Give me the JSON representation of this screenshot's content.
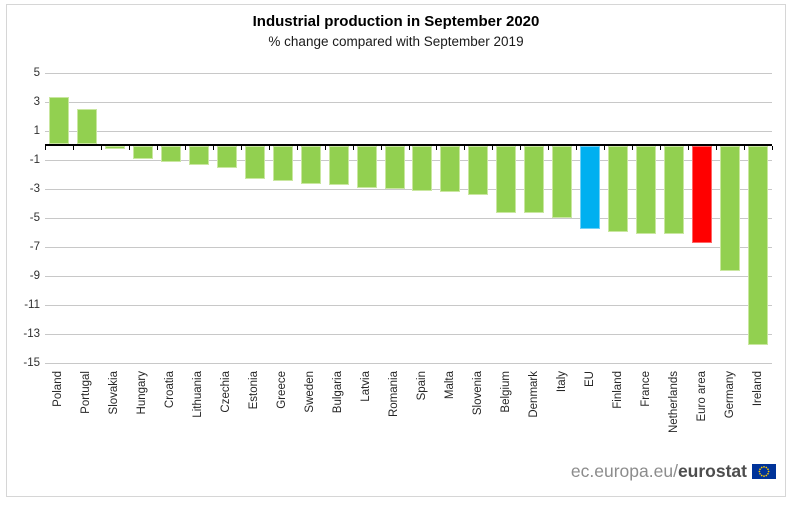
{
  "page": {
    "title": "Industrial production in September 2020",
    "subtitle": "% change compared with September 2019"
  },
  "footer": {
    "link_prefix": "ec.europa.eu/",
    "link_bold": "eurostat",
    "flag_icon": "eu-flag-icon",
    "flag_blue": "#003399",
    "flag_star_color": "#FFCC00"
  },
  "chart_data": {
    "type": "bar",
    "title": "Industrial production in September 2020",
    "subtitle": "% change compared with September 2019",
    "xlabel": "",
    "ylabel": "",
    "unit": "% change compared with September 2019",
    "ylim": [
      -15,
      5
    ],
    "yticks": [
      5,
      3,
      1,
      -1,
      -3,
      -5,
      -7,
      -9,
      -11,
      -13,
      -15
    ],
    "grid": true,
    "legend": false,
    "categories": [
      "Poland",
      "Portugal",
      "Slovakia",
      "Hungary",
      "Croatia",
      "Lithuania",
      "Czechia",
      "Estonia",
      "Greece",
      "Sweden",
      "Bulgaria",
      "Latvia",
      "Romania",
      "Spain",
      "Malta",
      "Slovenia",
      "Belgium",
      "Denmark",
      "Italy",
      "EU",
      "Finland",
      "France",
      "Netherlands",
      "Euro area",
      "Germany",
      "Ireland"
    ],
    "values": [
      3.3,
      2.5,
      -0.3,
      -1.0,
      -1.2,
      -1.4,
      -1.6,
      -2.4,
      -2.5,
      -2.7,
      -2.8,
      -3.0,
      -3.1,
      -3.2,
      -3.3,
      -3.5,
      -4.7,
      -4.7,
      -5.1,
      -5.8,
      -6.0,
      -6.2,
      -6.2,
      -6.8,
      -8.7,
      -13.8
    ],
    "bar_color_default": "#92D050",
    "bar_border_default": "#c9e7a0",
    "bar_color_overrides": {
      "EU": "#00B0F0",
      "Euro area": "#FF0000"
    },
    "bar_border_overrides": {
      "EU": "#6fd0f6",
      "Euro area": "#ff6666"
    }
  }
}
